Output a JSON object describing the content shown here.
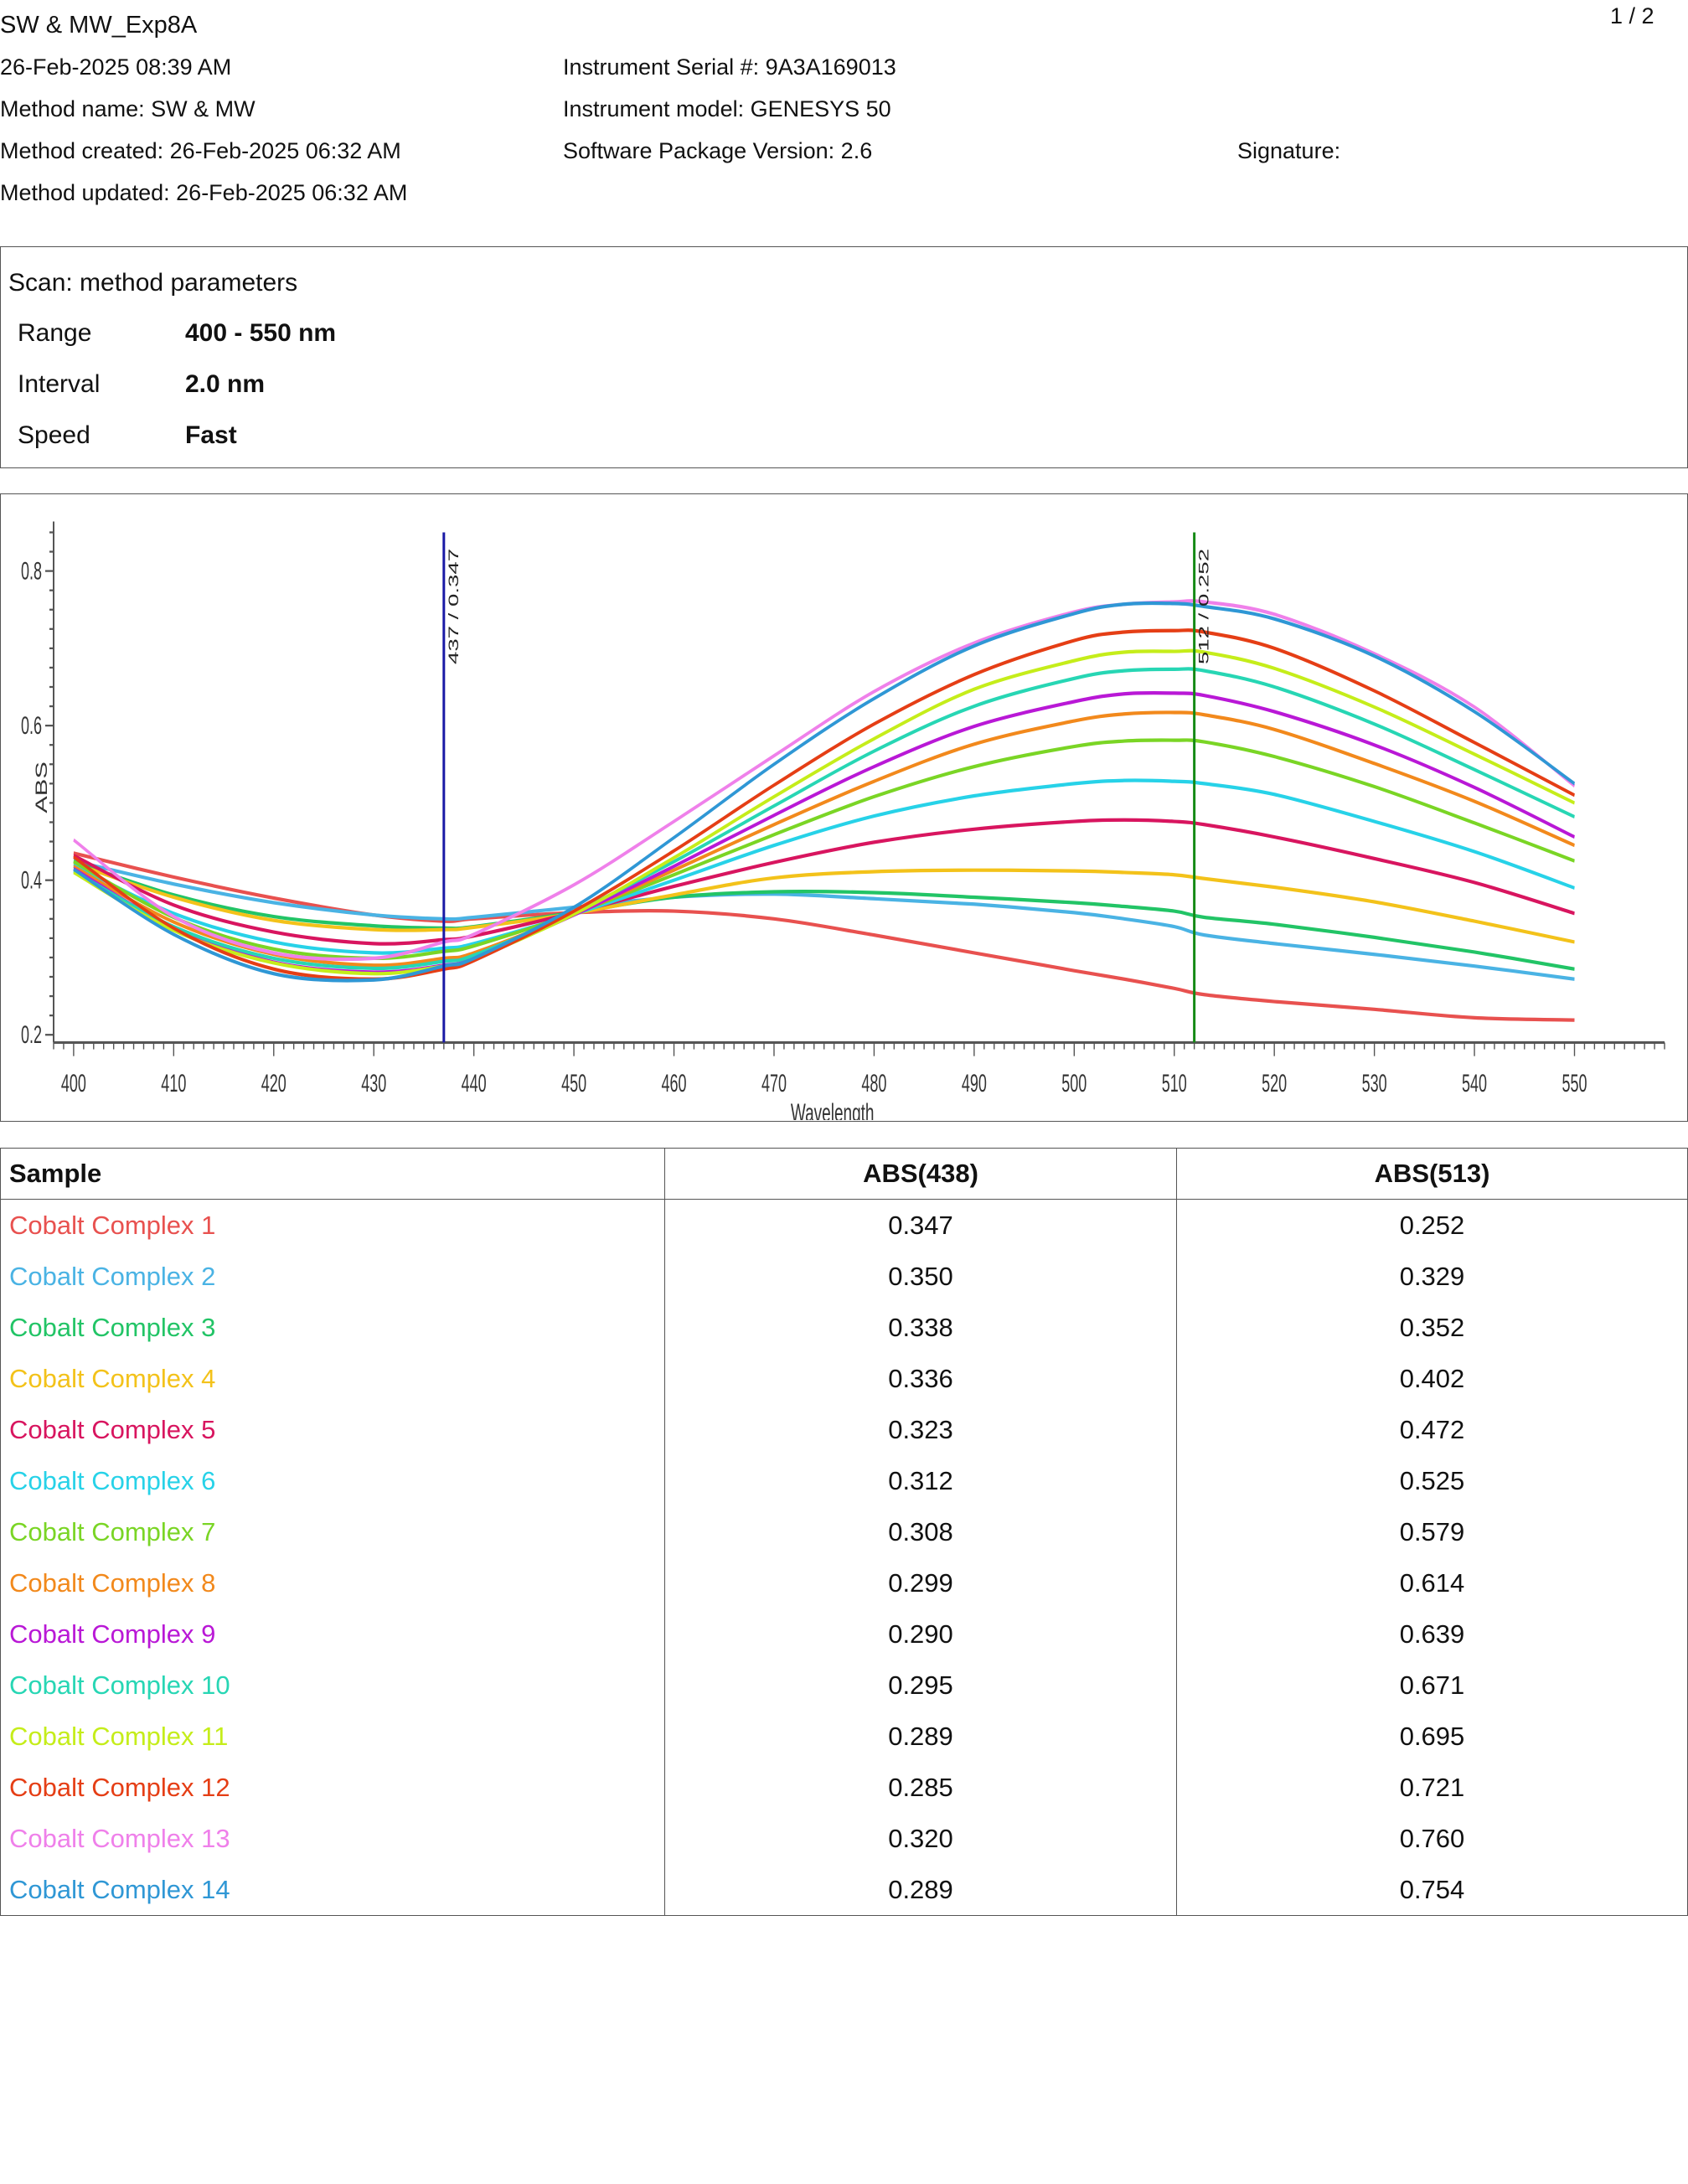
{
  "header": {
    "report_title": "SW & MW_Exp8A",
    "page_number": "1 / 2",
    "date_time": "26-Feb-2025 08:39 AM",
    "method_name": "Method name: SW & MW",
    "method_created": "Method created: 26-Feb-2025 06:32 AM",
    "method_updated": "Method updated: 26-Feb-2025 06:32 AM",
    "instrument_serial": "Instrument Serial #: 9A3A169013",
    "instrument_model": "Instrument model: GENESYS 50",
    "software_version": "Software Package Version: 2.6",
    "signature_label": "Signature:"
  },
  "parameters": {
    "title": "Scan: method parameters",
    "rows": [
      {
        "label": "Range",
        "value": "400 - 550 nm"
      },
      {
        "label": "Interval",
        "value": "2.0 nm"
      },
      {
        "label": "Speed",
        "value": "Fast"
      }
    ]
  },
  "chart_data": {
    "type": "line",
    "xlabel": "Wavelength",
    "ylabel": "ABS",
    "xlim": [
      398,
      559
    ],
    "ylim": [
      0.19,
      0.85
    ],
    "x_ticks": [
      400,
      410,
      420,
      430,
      440,
      450,
      460,
      470,
      480,
      490,
      500,
      510,
      520,
      530,
      540,
      550
    ],
    "y_ticks": [
      0.2,
      0.4,
      0.6,
      0.8
    ],
    "y_tick_labels": [
      "0.2",
      "0.4",
      "0.6",
      "0.8"
    ],
    "markers": [
      {
        "x": 437,
        "label": "437 / 0.347",
        "color": "#1a1aa6"
      },
      {
        "x": 512,
        "label": "512 / 0.252",
        "color": "#158a15"
      }
    ],
    "x": [
      400,
      410,
      420,
      430,
      437,
      440,
      450,
      460,
      470,
      480,
      490,
      500,
      505,
      510,
      513,
      520,
      530,
      540,
      550
    ],
    "series": [
      {
        "name": "Cobalt Complex 1",
        "color": "#e8514f",
        "values": [
          0.435,
          0.404,
          0.377,
          0.355,
          0.347,
          0.35,
          0.358,
          0.36,
          0.35,
          0.329,
          0.306,
          0.283,
          0.272,
          0.26,
          0.252,
          0.243,
          0.233,
          0.222,
          0.219
        ]
      },
      {
        "name": "Cobalt Complex 2",
        "color": "#4ab3e4",
        "values": [
          0.425,
          0.395,
          0.371,
          0.355,
          0.35,
          0.352,
          0.365,
          0.378,
          0.382,
          0.376,
          0.369,
          0.358,
          0.35,
          0.34,
          0.329,
          0.318,
          0.304,
          0.289,
          0.272
        ]
      },
      {
        "name": "Cobalt Complex 3",
        "color": "#22c466",
        "values": [
          0.424,
          0.381,
          0.353,
          0.341,
          0.338,
          0.34,
          0.358,
          0.378,
          0.385,
          0.384,
          0.378,
          0.371,
          0.366,
          0.36,
          0.352,
          0.343,
          0.326,
          0.307,
          0.285
        ]
      },
      {
        "name": "Cobalt Complex 4",
        "color": "#f3c21a",
        "values": [
          0.422,
          0.378,
          0.348,
          0.336,
          0.336,
          0.339,
          0.357,
          0.381,
          0.403,
          0.411,
          0.413,
          0.412,
          0.41,
          0.407,
          0.402,
          0.391,
          0.372,
          0.347,
          0.32
        ]
      },
      {
        "name": "Cobalt Complex 5",
        "color": "#d8155f",
        "values": [
          0.432,
          0.368,
          0.333,
          0.318,
          0.323,
          0.328,
          0.358,
          0.392,
          0.423,
          0.449,
          0.466,
          0.476,
          0.478,
          0.476,
          0.472,
          0.456,
          0.428,
          0.397,
          0.357
        ]
      },
      {
        "name": "Cobalt Complex 6",
        "color": "#27d2e8",
        "values": [
          0.42,
          0.357,
          0.32,
          0.306,
          0.312,
          0.318,
          0.356,
          0.4,
          0.445,
          0.483,
          0.509,
          0.525,
          0.529,
          0.528,
          0.525,
          0.511,
          0.476,
          0.437,
          0.39
        ]
      },
      {
        "name": "Cobalt Complex 7",
        "color": "#7ad525",
        "values": [
          0.424,
          0.352,
          0.311,
          0.299,
          0.308,
          0.315,
          0.357,
          0.407,
          0.459,
          0.508,
          0.547,
          0.573,
          0.58,
          0.581,
          0.579,
          0.56,
          0.521,
          0.474,
          0.425
        ]
      },
      {
        "name": "Cobalt Complex 8",
        "color": "#f2891c",
        "values": [
          0.418,
          0.346,
          0.304,
          0.29,
          0.299,
          0.306,
          0.356,
          0.413,
          0.472,
          0.528,
          0.576,
          0.606,
          0.615,
          0.617,
          0.614,
          0.595,
          0.551,
          0.502,
          0.445
        ]
      },
      {
        "name": "Cobalt Complex 9",
        "color": "#b918d6",
        "values": [
          0.415,
          0.339,
          0.294,
          0.281,
          0.29,
          0.299,
          0.355,
          0.418,
          0.484,
          0.547,
          0.599,
          0.631,
          0.641,
          0.642,
          0.639,
          0.618,
          0.575,
          0.52,
          0.456
        ]
      },
      {
        "name": "Cobalt Complex 10",
        "color": "#27d6b4",
        "values": [
          0.412,
          0.34,
          0.299,
          0.286,
          0.295,
          0.303,
          0.358,
          0.424,
          0.496,
          0.567,
          0.625,
          0.661,
          0.671,
          0.673,
          0.671,
          0.65,
          0.602,
          0.543,
          0.482
        ]
      },
      {
        "name": "Cobalt Complex 11",
        "color": "#c5ed1a",
        "values": [
          0.41,
          0.335,
          0.293,
          0.279,
          0.289,
          0.298,
          0.356,
          0.429,
          0.508,
          0.583,
          0.647,
          0.684,
          0.695,
          0.696,
          0.695,
          0.674,
          0.624,
          0.563,
          0.5
        ]
      },
      {
        "name": "Cobalt Complex 12",
        "color": "#e53e15",
        "values": [
          0.43,
          0.338,
          0.285,
          0.272,
          0.285,
          0.296,
          0.36,
          0.438,
          0.523,
          0.602,
          0.666,
          0.71,
          0.721,
          0.723,
          0.721,
          0.7,
          0.645,
          0.578,
          0.51
        ]
      },
      {
        "name": "Cobalt Complex 13",
        "color": "#ef80ea",
        "values": [
          0.452,
          0.353,
          0.306,
          0.299,
          0.32,
          0.33,
          0.394,
          0.476,
          0.561,
          0.644,
          0.707,
          0.747,
          0.757,
          0.76,
          0.76,
          0.744,
          0.693,
          0.624,
          0.522
        ]
      },
      {
        "name": "Cobalt Complex 14",
        "color": "#2f97d5",
        "values": [
          0.414,
          0.33,
          0.279,
          0.271,
          0.289,
          0.299,
          0.365,
          0.455,
          0.55,
          0.635,
          0.703,
          0.745,
          0.757,
          0.758,
          0.754,
          0.738,
          0.69,
          0.618,
          0.525
        ]
      }
    ]
  },
  "results_table": {
    "headers": [
      "Sample",
      "ABS(438)",
      "ABS(513)"
    ],
    "rows": [
      {
        "sample": "Cobalt Complex 1",
        "color": "#e8514f",
        "abs438": "0.347",
        "abs513": "0.252"
      },
      {
        "sample": "Cobalt Complex 2",
        "color": "#4ab3e4",
        "abs438": "0.350",
        "abs513": "0.329"
      },
      {
        "sample": "Cobalt Complex 3",
        "color": "#22c466",
        "abs438": "0.338",
        "abs513": "0.352"
      },
      {
        "sample": "Cobalt Complex 4",
        "color": "#f3c21a",
        "abs438": "0.336",
        "abs513": "0.402"
      },
      {
        "sample": "Cobalt Complex 5",
        "color": "#d8155f",
        "abs438": "0.323",
        "abs513": "0.472"
      },
      {
        "sample": "Cobalt Complex 6",
        "color": "#27d2e8",
        "abs438": "0.312",
        "abs513": "0.525"
      },
      {
        "sample": "Cobalt Complex 7",
        "color": "#7ad525",
        "abs438": "0.308",
        "abs513": "0.579"
      },
      {
        "sample": "Cobalt Complex 8",
        "color": "#f2891c",
        "abs438": "0.299",
        "abs513": "0.614"
      },
      {
        "sample": "Cobalt Complex 9",
        "color": "#b918d6",
        "abs438": "0.290",
        "abs513": "0.639"
      },
      {
        "sample": "Cobalt Complex 10",
        "color": "#27d6b4",
        "abs438": "0.295",
        "abs513": "0.671"
      },
      {
        "sample": "Cobalt Complex 11",
        "color": "#c5ed1a",
        "abs438": "0.289",
        "abs513": "0.695"
      },
      {
        "sample": "Cobalt Complex 12",
        "color": "#e53e15",
        "abs438": "0.285",
        "abs513": "0.721"
      },
      {
        "sample": "Cobalt Complex 13",
        "color": "#ef80ea",
        "abs438": "0.320",
        "abs513": "0.760"
      },
      {
        "sample": "Cobalt Complex 14",
        "color": "#2f97d5",
        "abs438": "0.289",
        "abs513": "0.754"
      }
    ]
  }
}
